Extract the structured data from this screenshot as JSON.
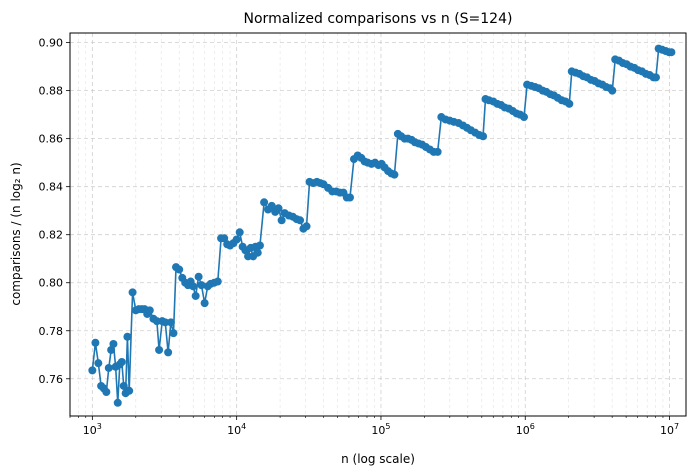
{
  "chart_data": {
    "type": "line",
    "title": "Normalized comparisons vs n (S=124)",
    "xlabel": "n (log scale)",
    "ylabel": "comparisons / (n log₂ n)",
    "x_scale": "log",
    "xlim": [
      700,
      13000000
    ],
    "ylim": [
      0.7445,
      0.904
    ],
    "x_ticks": [
      {
        "value": 1000,
        "base": "10",
        "exp": "3"
      },
      {
        "value": 10000,
        "base": "10",
        "exp": "4"
      },
      {
        "value": 100000,
        "base": "10",
        "exp": "5"
      },
      {
        "value": 1000000,
        "base": "10",
        "exp": "6"
      },
      {
        "value": 10000000,
        "base": "10",
        "exp": "7"
      }
    ],
    "y_ticks": [
      {
        "value": 0.76,
        "label": "0.76"
      },
      {
        "value": 0.78,
        "label": "0.78"
      },
      {
        "value": 0.8,
        "label": "0.80"
      },
      {
        "value": 0.82,
        "label": "0.82"
      },
      {
        "value": 0.84,
        "label": "0.84"
      },
      {
        "value": 0.86,
        "label": "0.86"
      },
      {
        "value": 0.88,
        "label": "0.88"
      },
      {
        "value": 0.9,
        "label": "0.90"
      }
    ],
    "grid": true,
    "series_color": "#1f77b4",
    "series": [
      {
        "name": "",
        "points": [
          [
            1000,
            0.7635
          ],
          [
            1050,
            0.775
          ],
          [
            1100,
            0.7665
          ],
          [
            1150,
            0.757
          ],
          [
            1200,
            0.756
          ],
          [
            1250,
            0.7545
          ],
          [
            1300,
            0.7645
          ],
          [
            1350,
            0.772
          ],
          [
            1400,
            0.7745
          ],
          [
            1450,
            0.765
          ],
          [
            1500,
            0.75
          ],
          [
            1550,
            0.766
          ],
          [
            1600,
            0.767
          ],
          [
            1650,
            0.757
          ],
          [
            1700,
            0.754
          ],
          [
            1750,
            0.7775
          ],
          [
            1800,
            0.755
          ],
          [
            1900,
            0.796
          ],
          [
            2000,
            0.7885
          ],
          [
            2100,
            0.789
          ],
          [
            2200,
            0.789
          ],
          [
            2300,
            0.789
          ],
          [
            2400,
            0.787
          ],
          [
            2500,
            0.7885
          ],
          [
            2650,
            0.785
          ],
          [
            2800,
            0.784
          ],
          [
            2900,
            0.772
          ],
          [
            3050,
            0.784
          ],
          [
            3200,
            0.7835
          ],
          [
            3350,
            0.771
          ],
          [
            3500,
            0.7835
          ],
          [
            3650,
            0.779
          ],
          [
            3800,
            0.8065
          ],
          [
            4000,
            0.8055
          ],
          [
            4200,
            0.802
          ],
          [
            4400,
            0.8
          ],
          [
            4600,
            0.799
          ],
          [
            4800,
            0.8005
          ],
          [
            5000,
            0.7985
          ],
          [
            5200,
            0.7945
          ],
          [
            5450,
            0.8025
          ],
          [
            5700,
            0.799
          ],
          [
            6000,
            0.7915
          ],
          [
            6300,
            0.7985
          ],
          [
            6600,
            0.7995
          ],
          [
            7000,
            0.8
          ],
          [
            7400,
            0.8005
          ],
          [
            7800,
            0.8185
          ],
          [
            8200,
            0.8185
          ],
          [
            8600,
            0.816
          ],
          [
            9000,
            0.8155
          ],
          [
            9500,
            0.8165
          ],
          [
            10000,
            0.818
          ],
          [
            10500,
            0.821
          ],
          [
            11000,
            0.815
          ],
          [
            11500,
            0.8135
          ],
          [
            12000,
            0.811
          ],
          [
            12500,
            0.8145
          ],
          [
            13000,
            0.811
          ],
          [
            13500,
            0.815
          ],
          [
            14000,
            0.8125
          ],
          [
            14500,
            0.8155
          ],
          [
            15500,
            0.8335
          ],
          [
            16500,
            0.8305
          ],
          [
            17500,
            0.832
          ],
          [
            18500,
            0.8295
          ],
          [
            19500,
            0.831
          ],
          [
            20500,
            0.826
          ],
          [
            21500,
            0.829
          ],
          [
            23000,
            0.828
          ],
          [
            24500,
            0.8275
          ],
          [
            26000,
            0.8265
          ],
          [
            27500,
            0.826
          ],
          [
            29000,
            0.8225
          ],
          [
            30500,
            0.8235
          ],
          [
            32000,
            0.842
          ],
          [
            34000,
            0.8415
          ],
          [
            36000,
            0.842
          ],
          [
            38000,
            0.8415
          ],
          [
            40000,
            0.841
          ],
          [
            43000,
            0.8395
          ],
          [
            46000,
            0.838
          ],
          [
            49000,
            0.838
          ],
          [
            52000,
            0.8375
          ],
          [
            55000,
            0.8375
          ],
          [
            58000,
            0.8355
          ],
          [
            61000,
            0.8355
          ],
          [
            65000,
            0.8515
          ],
          [
            69000,
            0.853
          ],
          [
            73000,
            0.852
          ],
          [
            77000,
            0.8505
          ],
          [
            81000,
            0.85
          ],
          [
            86000,
            0.8495
          ],
          [
            91000,
            0.85
          ],
          [
            96000,
            0.849
          ],
          [
            101000,
            0.8495
          ],
          [
            106000,
            0.848
          ],
          [
            112000,
            0.8465
          ],
          [
            118000,
            0.8455
          ],
          [
            124000,
            0.845
          ],
          [
            131000,
            0.862
          ],
          [
            138000,
            0.861
          ],
          [
            146000,
            0.86
          ],
          [
            154000,
            0.86
          ],
          [
            163000,
            0.8595
          ],
          [
            172000,
            0.8585
          ],
          [
            182000,
            0.858
          ],
          [
            193000,
            0.8575
          ],
          [
            205000,
            0.8565
          ],
          [
            218000,
            0.8555
          ],
          [
            232000,
            0.8545
          ],
          [
            247000,
            0.8545
          ],
          [
            262000,
            0.869
          ],
          [
            280000,
            0.868
          ],
          [
            300000,
            0.8675
          ],
          [
            320000,
            0.867
          ],
          [
            345000,
            0.8665
          ],
          [
            370000,
            0.8655
          ],
          [
            395000,
            0.8645
          ],
          [
            420000,
            0.8635
          ],
          [
            450000,
            0.8625
          ],
          [
            480000,
            0.8615
          ],
          [
            510000,
            0.861
          ],
          [
            530000,
            0.8765
          ],
          [
            560000,
            0.876
          ],
          [
            600000,
            0.8755
          ],
          [
            640000,
            0.8745
          ],
          [
            680000,
            0.874
          ],
          [
            720000,
            0.873
          ],
          [
            770000,
            0.8725
          ],
          [
            820000,
            0.8715
          ],
          [
            870000,
            0.8705
          ],
          [
            920000,
            0.87
          ],
          [
            980000,
            0.869
          ],
          [
            1030000,
            0.8825
          ],
          [
            1100000,
            0.882
          ],
          [
            1170000,
            0.8815
          ],
          [
            1240000,
            0.881
          ],
          [
            1320000,
            0.88
          ],
          [
            1400000,
            0.8795
          ],
          [
            1490000,
            0.8785
          ],
          [
            1580000,
            0.878
          ],
          [
            1680000,
            0.877
          ],
          [
            1790000,
            0.876
          ],
          [
            1900000,
            0.8755
          ],
          [
            2020000,
            0.8745
          ],
          [
            2100000,
            0.888
          ],
          [
            2230000,
            0.8875
          ],
          [
            2370000,
            0.887
          ],
          [
            2520000,
            0.886
          ],
          [
            2680000,
            0.8855
          ],
          [
            2850000,
            0.8845
          ],
          [
            3030000,
            0.884
          ],
          [
            3220000,
            0.883
          ],
          [
            3420000,
            0.8825
          ],
          [
            3640000,
            0.8815
          ],
          [
            3870000,
            0.881
          ],
          [
            4010000,
            0.88
          ],
          [
            4200000,
            0.893
          ],
          [
            4460000,
            0.8925
          ],
          [
            4740000,
            0.8915
          ],
          [
            5040000,
            0.891
          ],
          [
            5360000,
            0.89
          ],
          [
            5700000,
            0.8895
          ],
          [
            6060000,
            0.8885
          ],
          [
            6440000,
            0.888
          ],
          [
            6850000,
            0.887
          ],
          [
            7280000,
            0.8865
          ],
          [
            7740000,
            0.8855
          ],
          [
            8050000,
            0.8855
          ],
          [
            8400000,
            0.8975
          ],
          [
            8900000,
            0.897
          ],
          [
            9400000,
            0.8965
          ],
          [
            9900000,
            0.896
          ],
          [
            10300000,
            0.896
          ]
        ]
      }
    ]
  }
}
